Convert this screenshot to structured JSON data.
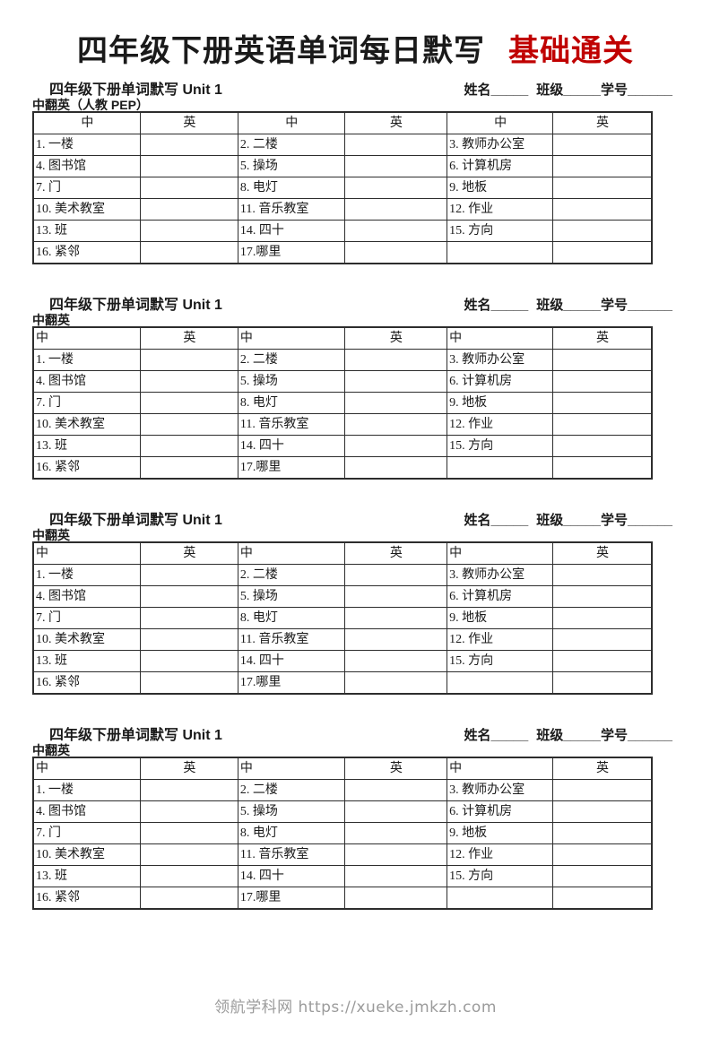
{
  "title": {
    "main": "四年级下册英语单词每日默写",
    "badge": "基础通关"
  },
  "colors": {
    "badge_red": "#c00000",
    "footer_gray": "#9b9b9b",
    "table_border": "#2d2d2d"
  },
  "sections": [
    {
      "heading": "四年级下册单词默写 Unit 1",
      "name_field": "姓名_____",
      "class_field": "班级_____",
      "id_field": "学号______",
      "subtitle": "中翻英（人教 PEP）"
    },
    {
      "heading": "四年级下册单词默写 Unit 1",
      "name_field": "姓名_____",
      "class_field": "班级_____",
      "id_field": "学号______",
      "subtitle": "中翻英"
    },
    {
      "heading": "四年级下册单词默写 Unit 1",
      "name_field": "姓名_____",
      "class_field": "班级_____",
      "id_field": "学号______",
      "subtitle": "中翻英"
    },
    {
      "heading": "四年级下册单词默写 Unit 1",
      "name_field": "姓名_____",
      "class_field": "班级_____",
      "id_field": "学号______",
      "subtitle": "中翻英"
    }
  ],
  "vocab_table": {
    "headers": [
      "中",
      "英",
      "中",
      "英",
      "中",
      "英"
    ],
    "rows": [
      [
        "1. 一楼",
        "",
        "2. 二楼",
        "",
        "3. 教师办公室",
        ""
      ],
      [
        "4. 图书馆",
        "",
        "5. 操场",
        "",
        "6. 计算机房",
        ""
      ],
      [
        "7. 门",
        "",
        "8. 电灯",
        "",
        "9. 地板",
        ""
      ],
      [
        "10. 美术教室",
        "",
        "11. 音乐教室",
        "",
        "12. 作业",
        ""
      ],
      [
        "13. 班",
        "",
        "14. 四十",
        "",
        "15. 方向",
        ""
      ],
      [
        "16. 紧邻",
        "",
        "17.哪里",
        "",
        "",
        ""
      ]
    ]
  },
  "footer": {
    "text": "领航学科网 https://xueke.jmkzh.com"
  }
}
